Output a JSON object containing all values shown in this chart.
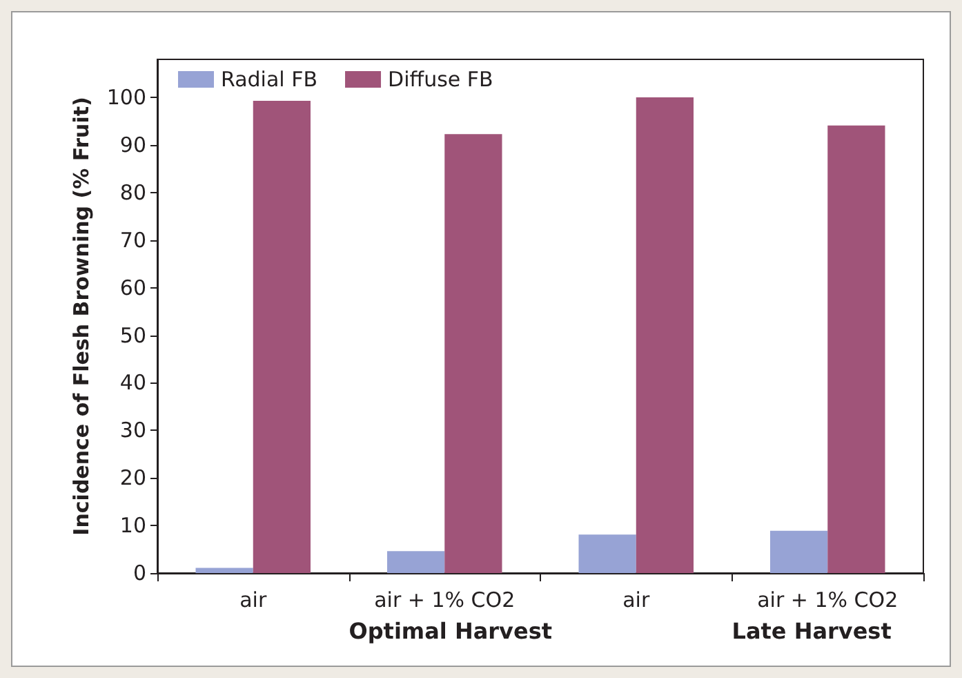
{
  "chart_data": {
    "type": "bar",
    "ylabel": "Incidence of Flesh Browning (% Fruit)",
    "categories": [
      "air",
      "air + 1% CO2",
      "air",
      "air + 1% CO2"
    ],
    "series": [
      {
        "name": "Radial FB",
        "color": "#97a3d5",
        "values": [
          1.1,
          4.6,
          8.1,
          8.9
        ]
      },
      {
        "name": "Diffuse FB",
        "color": "#a05479",
        "values": [
          99.3,
          92.3,
          100,
          94.1
        ]
      }
    ],
    "ylim": [
      0,
      108
    ],
    "yticks": [
      0,
      10,
      20,
      30,
      40,
      50,
      60,
      70,
      80,
      90,
      100
    ],
    "annotations": [
      "Optimal Harvest",
      "Late Harvest"
    ],
    "legend": "top left",
    "grid": false
  }
}
